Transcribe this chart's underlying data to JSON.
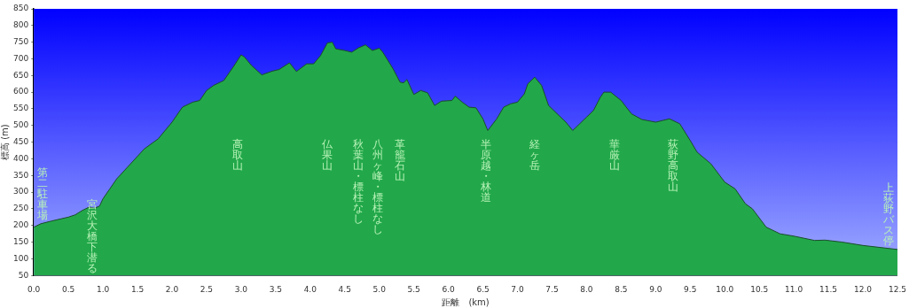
{
  "chart_data": {
    "type": "area",
    "xlabel": "距離　(km)",
    "ylabel": "標高 (m)",
    "xlim": [
      0,
      12.5
    ],
    "ylim": [
      50,
      850
    ],
    "xticks": [
      {
        "value": 0,
        "label": "0.0"
      },
      {
        "value": 0.5,
        "label": "0.5"
      },
      {
        "value": 1,
        "label": "1.0"
      },
      {
        "value": 1.5,
        "label": "1.5"
      },
      {
        "value": 2,
        "label": "2.0"
      },
      {
        "value": 2.5,
        "label": "2.5"
      },
      {
        "value": 3,
        "label": "3.0"
      },
      {
        "value": 3.5,
        "label": "3.5"
      },
      {
        "value": 4,
        "label": "4.0"
      },
      {
        "value": 4.5,
        "label": "4.5"
      },
      {
        "value": 5,
        "label": "5.0"
      },
      {
        "value": 5.5,
        "label": "5.5"
      },
      {
        "value": 6,
        "label": "6.0"
      },
      {
        "value": 6.5,
        "label": "6.5"
      },
      {
        "value": 7,
        "label": "7.0"
      },
      {
        "value": 7.5,
        "label": "7.5"
      },
      {
        "value": 8,
        "label": "8.0"
      },
      {
        "value": 8.5,
        "label": "8.5"
      },
      {
        "value": 9,
        "label": "9.0"
      },
      {
        "value": 9.5,
        "label": "9.5"
      },
      {
        "value": 10,
        "label": "10.0"
      },
      {
        "value": 10.5,
        "label": "10.5"
      },
      {
        "value": 11,
        "label": "11.0"
      },
      {
        "value": 11.5,
        "label": "11.5"
      },
      {
        "value": 12,
        "label": "12.0"
      },
      {
        "value": 12.5,
        "label": "12.5"
      }
    ],
    "yticks": [
      50,
      100,
      150,
      200,
      250,
      300,
      350,
      400,
      450,
      500,
      550,
      600,
      650,
      700,
      750,
      800,
      850
    ],
    "grid": "y",
    "legend": false,
    "marker": "none",
    "series": [
      {
        "color": "#22a84a",
        "x": [
          0,
          0.1,
          0.25,
          0.5,
          0.6,
          0.7,
          0.8,
          0.88,
          0.95,
          1.0,
          1.1,
          1.2,
          1.4,
          1.6,
          1.8,
          2.0,
          2.15,
          2.3,
          2.4,
          2.5,
          2.6,
          2.75,
          2.9,
          3.0,
          3.05,
          3.15,
          3.3,
          3.45,
          3.55,
          3.7,
          3.8,
          3.95,
          4.05,
          4.15,
          4.25,
          4.32,
          4.37,
          4.5,
          4.6,
          4.7,
          4.8,
          4.9,
          5.0,
          5.05,
          5.2,
          5.3,
          5.35,
          5.4,
          5.5,
          5.6,
          5.7,
          5.8,
          5.9,
          6.05,
          6.1,
          6.2,
          6.3,
          6.4,
          6.5,
          6.57,
          6.7,
          6.8,
          6.9,
          7.0,
          7.1,
          7.15,
          7.25,
          7.35,
          7.45,
          7.6,
          7.7,
          7.8,
          7.9,
          8.0,
          8.1,
          8.2,
          8.25,
          8.35,
          8.5,
          8.65,
          8.8,
          9.0,
          9.1,
          9.2,
          9.35,
          9.5,
          9.6,
          9.8,
          10.0,
          10.15,
          10.3,
          10.4,
          10.6,
          10.8,
          11.0,
          11.3,
          11.45,
          11.7,
          12.0,
          12.5
        ],
        "values": [
          195,
          205,
          213,
          225,
          232,
          245,
          255,
          252,
          258,
          280,
          310,
          340,
          385,
          430,
          460,
          510,
          555,
          570,
          575,
          605,
          620,
          635,
          680,
          712,
          705,
          680,
          652,
          663,
          668,
          688,
          662,
          685,
          685,
          710,
          748,
          750,
          730,
          725,
          720,
          733,
          742,
          725,
          732,
          720,
          670,
          630,
          628,
          638,
          593,
          605,
          598,
          560,
          573,
          575,
          588,
          570,
          555,
          553,
          520,
          485,
          520,
          555,
          565,
          570,
          595,
          625,
          645,
          620,
          560,
          530,
          510,
          485,
          505,
          525,
          545,
          585,
          600,
          600,
          575,
          535,
          518,
          510,
          515,
          520,
          505,
          455,
          420,
          385,
          330,
          310,
          265,
          250,
          195,
          175,
          168,
          155,
          156,
          150,
          140,
          128
        ]
      }
    ],
    "annotations": [
      "第二駐車場",
      "宮沢大橋下潜る",
      "高取山",
      "仏果山",
      "秋葉山・標柱なし",
      "八州ヶ峰・標柱なし",
      "革籠石山",
      "半原越・林道",
      "経ヶ岳",
      "華厳山",
      "荻野高取山",
      "上荻野バス停"
    ]
  }
}
